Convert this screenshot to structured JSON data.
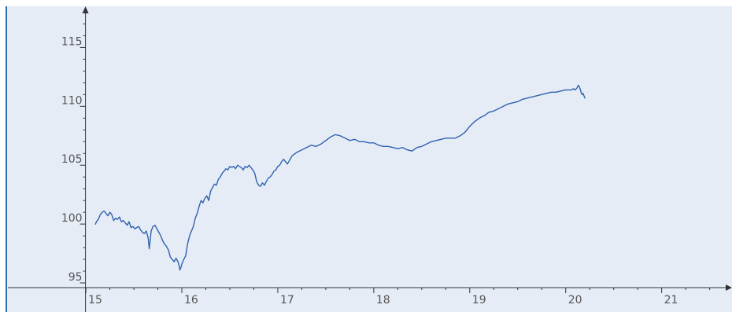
{
  "chart_data": {
    "type": "line",
    "title": "",
    "xlabel": "",
    "ylabel": "",
    "xlim": [
      14.95,
      21.7
    ],
    "ylim": [
      94.6,
      118.5
    ],
    "x_ticks": [
      15,
      16,
      17,
      18,
      19,
      20,
      21
    ],
    "y_ticks": [
      95,
      100,
      105,
      110,
      115
    ],
    "x_tick_labels": [
      "15",
      "16",
      "17",
      "18",
      "19",
      "20",
      "21"
    ],
    "y_tick_labels": [
      "95",
      "100",
      "105",
      "110",
      "115"
    ],
    "grid": false,
    "background_color": "#e5ecf6",
    "axis_color": "#333333",
    "left_border_color": "#2f6fb3",
    "series": [
      {
        "color": "#2f62ad",
        "x": [
          15.1,
          15.11,
          15.13,
          15.15,
          15.17,
          15.19,
          15.21,
          15.23,
          15.25,
          15.27,
          15.29,
          15.31,
          15.33,
          15.35,
          15.37,
          15.39,
          15.41,
          15.43,
          15.45,
          15.47,
          15.49,
          15.51,
          15.53,
          15.55,
          15.57,
          15.59,
          15.61,
          15.63,
          15.65,
          15.66,
          15.67,
          15.68,
          15.7,
          15.72,
          15.74,
          15.76,
          15.78,
          15.8,
          15.82,
          15.84,
          15.86,
          15.88,
          15.9,
          15.92,
          15.94,
          15.96,
          15.97,
          15.98,
          15.99,
          16.0,
          16.02,
          16.04,
          16.06,
          16.08,
          16.1,
          16.12,
          16.14,
          16.16,
          16.18,
          16.2,
          16.22,
          16.24,
          16.26,
          16.28,
          16.3,
          16.32,
          16.34,
          16.36,
          16.38,
          16.4,
          16.42,
          16.44,
          16.46,
          16.48,
          16.5,
          16.52,
          16.54,
          16.56,
          16.58,
          16.6,
          16.62,
          16.64,
          16.66,
          16.68,
          16.7,
          16.72,
          16.74,
          16.76,
          16.78,
          16.8,
          16.82,
          16.84,
          16.86,
          16.88,
          16.9,
          16.92,
          16.94,
          16.96,
          16.98,
          17.0,
          17.02,
          17.04,
          17.06,
          17.08,
          17.1,
          17.15,
          17.2,
          17.25,
          17.3,
          17.35,
          17.4,
          17.45,
          17.5,
          17.55,
          17.6,
          17.65,
          17.7,
          17.75,
          17.8,
          17.85,
          17.9,
          17.95,
          18.0,
          18.05,
          18.1,
          18.15,
          18.2,
          18.25,
          18.3,
          18.35,
          18.4,
          18.45,
          18.5,
          18.55,
          18.6,
          18.65,
          18.7,
          18.75,
          18.8,
          18.85,
          18.9,
          18.95,
          19.0,
          19.05,
          19.1,
          19.15,
          19.2,
          19.25,
          19.3,
          19.35,
          19.4,
          19.45,
          19.5,
          19.55,
          19.6,
          19.65,
          19.7,
          19.75,
          19.8,
          19.85,
          19.9,
          19.95,
          20.0,
          20.03,
          20.06,
          20.08,
          20.1,
          20.12,
          20.13,
          20.14,
          20.15,
          20.16,
          20.17,
          20.18,
          20.19,
          20.2
        ],
        "y": [
          100.0,
          100.2,
          100.4,
          100.8,
          101.0,
          101.1,
          100.9,
          100.7,
          101.0,
          100.8,
          100.3,
          100.5,
          100.4,
          100.6,
          100.2,
          100.3,
          100.1,
          99.9,
          100.2,
          99.7,
          99.8,
          99.6,
          99.7,
          99.8,
          99.5,
          99.3,
          99.2,
          99.4,
          98.8,
          97.9,
          98.6,
          99.4,
          99.8,
          99.9,
          99.6,
          99.3,
          99.0,
          98.6,
          98.3,
          98.1,
          97.8,
          97.2,
          97.0,
          96.8,
          97.1,
          96.8,
          96.5,
          96.1,
          96.3,
          96.6,
          97.0,
          97.3,
          98.3,
          99.0,
          99.4,
          99.8,
          100.5,
          100.9,
          101.5,
          102.0,
          101.8,
          102.2,
          102.4,
          102.0,
          102.8,
          103.1,
          103.4,
          103.3,
          103.8,
          104.0,
          104.3,
          104.5,
          104.7,
          104.6,
          104.9,
          104.8,
          104.9,
          104.7,
          105.0,
          104.9,
          104.8,
          104.6,
          104.9,
          104.8,
          105.0,
          104.8,
          104.6,
          104.3,
          103.6,
          103.3,
          103.2,
          103.5,
          103.3,
          103.6,
          103.9,
          104.0,
          104.2,
          104.5,
          104.6,
          104.9,
          105.0,
          105.3,
          105.5,
          105.3,
          105.1,
          105.8,
          106.1,
          106.3,
          106.5,
          106.7,
          106.6,
          106.8,
          107.1,
          107.4,
          107.6,
          107.5,
          107.3,
          107.1,
          107.2,
          107.0,
          107.0,
          106.9,
          106.9,
          106.7,
          106.6,
          106.6,
          106.5,
          106.4,
          106.5,
          106.3,
          106.2,
          106.5,
          106.6,
          106.8,
          107.0,
          107.1,
          107.2,
          107.3,
          107.3,
          107.3,
          107.5,
          107.8,
          108.3,
          108.7,
          109.0,
          109.2,
          109.5,
          109.6,
          109.8,
          110.0,
          110.2,
          110.3,
          110.4,
          110.6,
          110.7,
          110.8,
          110.9,
          111.0,
          111.1,
          111.2,
          111.2,
          111.3,
          111.4,
          111.4,
          111.4,
          111.5,
          111.4,
          111.6,
          111.8,
          111.7,
          111.5,
          111.2,
          111.0,
          111.1,
          110.9,
          110.7
        ]
      }
    ]
  }
}
